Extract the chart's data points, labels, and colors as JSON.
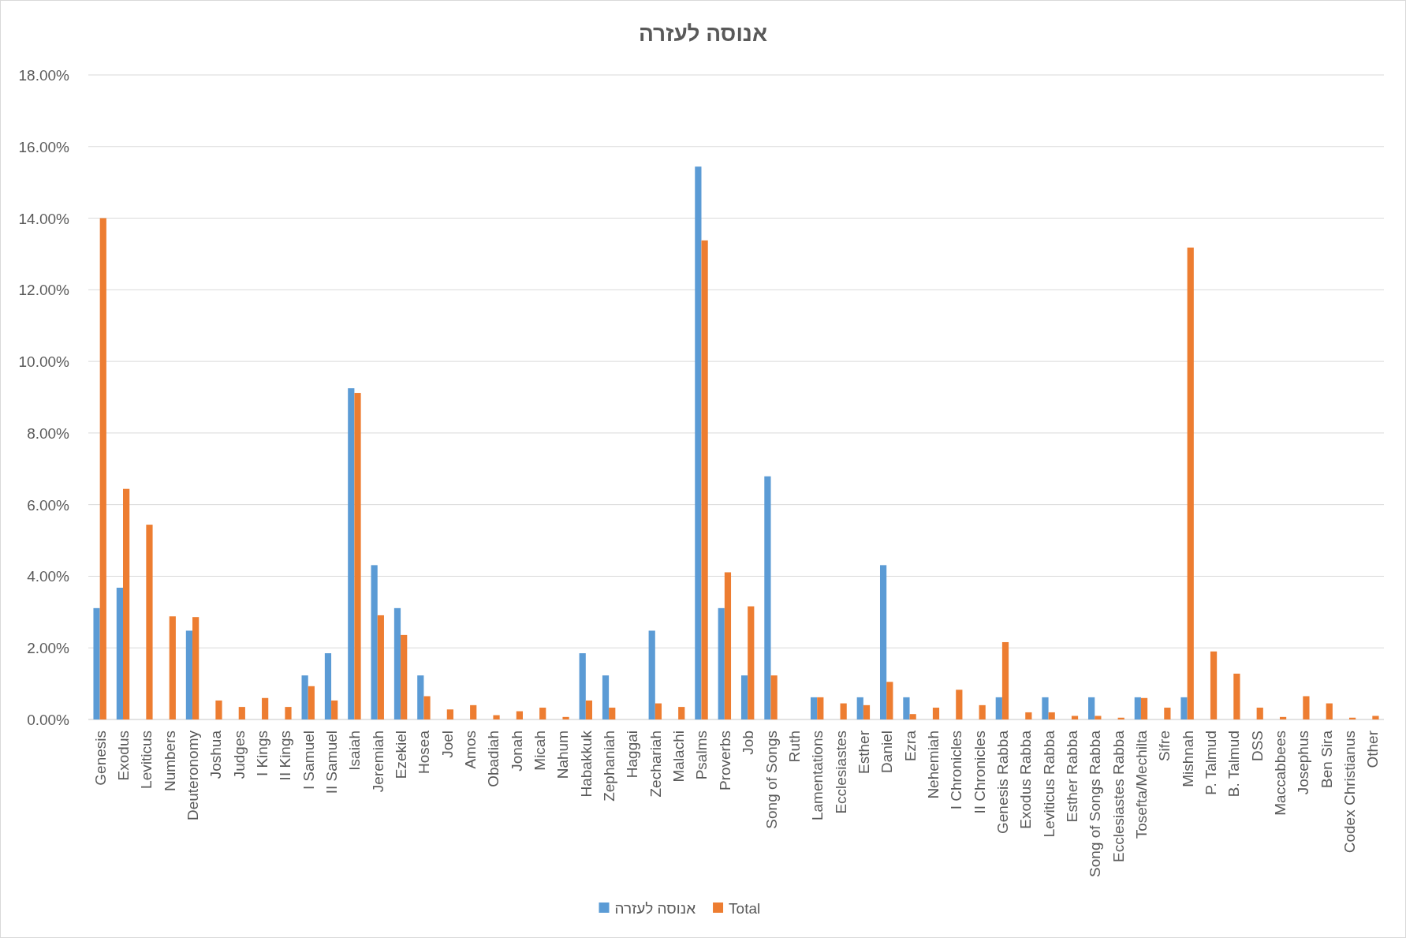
{
  "chart_data": {
    "type": "bar",
    "title": "אנוסה לעזרה",
    "categories": [
      "Genesis",
      "Exodus",
      "Leviticus",
      "Numbers",
      "Deuteronomy",
      "Joshua",
      "Judges",
      "I Kings",
      "II Kings",
      "I Samuel",
      "II Samuel",
      "Isaiah",
      "Jeremiah",
      "Ezekiel",
      "Hosea",
      "Joel",
      "Amos",
      "Obadiah",
      "Jonah",
      "Micah",
      "Nahum",
      "Habakkuk",
      "Zephaniah",
      "Haggai",
      "Zechariah",
      "Malachi",
      "Psalms",
      "Proverbs",
      "Job",
      "Song of Songs",
      "Ruth",
      "Lamentations",
      "Ecclesiastes",
      "Esther",
      "Daniel",
      "Ezra",
      "Nehemiah",
      "I Chronicles",
      "II Chronicles",
      "Genesis Rabba",
      "Exodus Rabba",
      "Leviticus Rabba",
      "Esther Rabba",
      "Song of Songs Rabba",
      "Ecclesiastes Rabba",
      "Tosefta/Mechilta",
      "Sifre",
      "Mishnah",
      "P. Talmud",
      "B. Talmud",
      "DSS",
      "Maccabbees",
      "Josephus",
      "Ben Sira",
      "Codex Christianus",
      "Other"
    ],
    "series": [
      {
        "name": "אנוסה לעזרה",
        "color": "#5b9bd5",
        "values": [
          3.11,
          3.68,
          0,
          0,
          2.48,
          0,
          0,
          0,
          0,
          1.23,
          1.85,
          9.25,
          4.31,
          3.11,
          1.23,
          0,
          0,
          0,
          0,
          0,
          0,
          1.85,
          1.23,
          0,
          2.48,
          0,
          15.44,
          3.11,
          1.23,
          6.79,
          0,
          0.62,
          0,
          0.62,
          4.31,
          0.62,
          0,
          0,
          0,
          0.62,
          0,
          0.62,
          0,
          0.62,
          0,
          0.62,
          0,
          0.62,
          0,
          0,
          0,
          0,
          0,
          0,
          0,
          0
        ]
      },
      {
        "name": "Total",
        "color": "#ed7d31",
        "values": [
          14.0,
          6.44,
          5.44,
          2.88,
          2.86,
          0.53,
          0.35,
          0.6,
          0.35,
          0.93,
          0.53,
          9.12,
          2.91,
          2.36,
          0.65,
          0.28,
          0.4,
          0.12,
          0.23,
          0.33,
          0.07,
          0.53,
          0.33,
          0,
          0.45,
          0.35,
          13.38,
          4.11,
          3.16,
          1.23,
          0,
          0.62,
          0.45,
          0.4,
          1.05,
          0.15,
          0.33,
          0.83,
          0.4,
          2.16,
          0.2,
          0.2,
          0.1,
          0.1,
          0.05,
          0.6,
          0.33,
          13.18,
          1.9,
          1.28,
          0.33,
          0.07,
          0.65,
          0.45,
          0.05,
          0.1
        ]
      }
    ],
    "ylim": [
      0,
      18
    ],
    "yticks": [
      {
        "value": 0,
        "label": "0.00%"
      },
      {
        "value": 2,
        "label": "2.00%"
      },
      {
        "value": 4,
        "label": "4.00%"
      },
      {
        "value": 6,
        "label": "6.00%"
      },
      {
        "value": 8,
        "label": "8.00%"
      },
      {
        "value": 10,
        "label": "10.00%"
      },
      {
        "value": 12,
        "label": "12.00%"
      },
      {
        "value": 14,
        "label": "14.00%"
      },
      {
        "value": 16,
        "label": "16.00%"
      },
      {
        "value": 18,
        "label": "18.00%"
      }
    ],
    "grid": "y",
    "legend": "bottom"
  }
}
